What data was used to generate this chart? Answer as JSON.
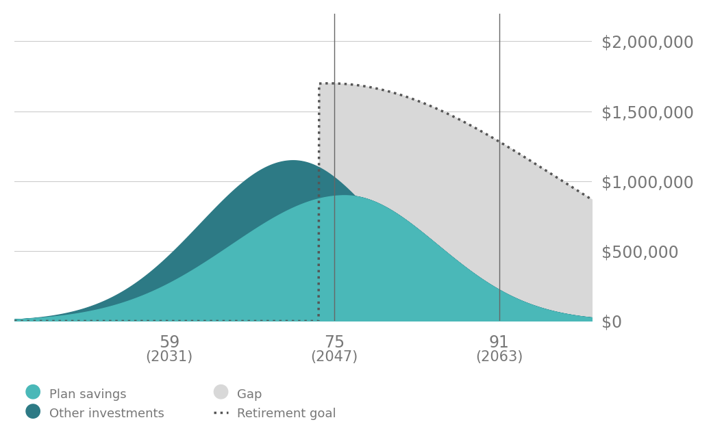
{
  "background_color": "#ffffff",
  "x_ticks": [
    59,
    75,
    91
  ],
  "x_tick_labels_line1": [
    "59",
    "75",
    "91"
  ],
  "x_tick_labels_line2": [
    "(2031)",
    "(2047)",
    "(2063)"
  ],
  "x_vlines": [
    75,
    91
  ],
  "y_ticks": [
    0,
    500000,
    1000000,
    1500000,
    2000000
  ],
  "y_tick_labels": [
    "$0",
    "$500,000",
    "$1,000,000",
    "$1,500,000",
    "$2,000,000"
  ],
  "ylim": [
    0,
    2200000
  ],
  "xlim": [
    44,
    100
  ],
  "plan_savings_color": "#4ab8b8",
  "other_investments_color": "#2d7a85",
  "gap_color": "#d8d8d8",
  "retirement_goal_color": "#555555",
  "vline_color": "#666666",
  "legend_fontsize": 13,
  "tick_fontsize": 17,
  "tick_color": "#777777",
  "grid_color": "#cccccc",
  "legend_circle_size": 10
}
